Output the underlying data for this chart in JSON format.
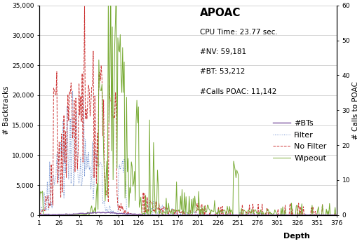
{
  "title": "APOAC",
  "subtitle_lines": [
    "CPU Time: 23.77 sec.",
    "#NV: 59,181",
    "#BT: 53,212",
    "#Calls POAC: 11,142"
  ],
  "ylabel_left": "# Backtracks",
  "ylabel_right": "# Calls to POAC",
  "xlabel": "Depth",
  "ylim_left": [
    0,
    35000
  ],
  "ylim_right": [
    0,
    60
  ],
  "xlim": [
    1,
    376
  ],
  "yticks_left": [
    0,
    5000,
    10000,
    15000,
    20000,
    25000,
    30000,
    35000
  ],
  "yticks_right": [
    0,
    10,
    20,
    30,
    40,
    50,
    60
  ],
  "xticks": [
    1,
    26,
    51,
    76,
    101,
    126,
    151,
    176,
    201,
    226,
    251,
    276,
    301,
    326,
    351,
    376
  ],
  "colors": {
    "bts": "#7B54A0",
    "filter": "#6688CC",
    "no_filter": "#CC3333",
    "wipeout": "#77AA33"
  },
  "legend_labels": [
    "#BTs",
    "Filter",
    "No Filter",
    "Wipeout"
  ],
  "background_color": "#FFFFFF",
  "grid_color": "#CCCCCC"
}
